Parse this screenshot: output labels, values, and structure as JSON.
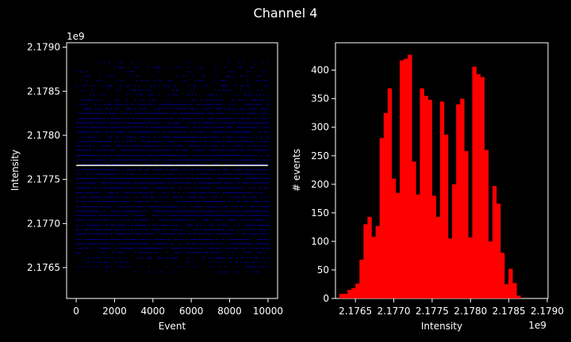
{
  "figure": {
    "title": "Channel 4",
    "background": "#000000",
    "foreground": "#ffffff"
  },
  "chart_data": [
    {
      "type": "scatter",
      "title": "",
      "xlabel": "Event",
      "ylabel": "Intensity",
      "y_offset_label": "1e9",
      "xlim": [
        -500,
        10500
      ],
      "ylim": [
        2176150000.0,
        2179050000.0
      ],
      "x_ticks": [
        0,
        2000,
        4000,
        6000,
        8000,
        10000
      ],
      "x_tick_labels": [
        "0",
        "2000",
        "4000",
        "6000",
        "8000",
        "10000"
      ],
      "y_ticks": [
        2176500000.0,
        2177000000.0,
        2177500000.0,
        2178000000.0,
        2178500000.0,
        2179000000.0
      ],
      "y_tick_labels": [
        "2.1765",
        "2.1770",
        "2.1775",
        "2.1780",
        "2.1785",
        "2.1790"
      ],
      "point_color": "#0000ff",
      "point_x_range": [
        0,
        10000
      ],
      "point_levels": [
        2176450000.0,
        2176510000.0,
        2176560000.0,
        2176610000.0,
        2176670000.0,
        2176720000.0,
        2176770000.0,
        2176820000.0,
        2176880000.0,
        2176930000.0,
        2176980000.0,
        2177040000.0,
        2177090000.0,
        2177140000.0,
        2177190000.0,
        2177250000.0,
        2177300000.0,
        2177350000.0,
        2177400000.0,
        2177460000.0,
        2177510000.0,
        2177560000.0,
        2177610000.0,
        2177670000.0,
        2177720000.0,
        2177770000.0,
        2177830000.0,
        2177880000.0,
        2177930000.0,
        2177980000.0,
        2178040000.0,
        2178090000.0,
        2178140000.0,
        2178190000.0,
        2178250000.0,
        2178300000.0,
        2178350000.0,
        2178400000.0,
        2178460000.0,
        2178510000.0,
        2178560000.0,
        2178620000.0,
        2178670000.0,
        2178720000.0,
        2178770000.0,
        2178830000.0
      ],
      "level_density": [
        0.2,
        0.25,
        0.3,
        0.45,
        0.55,
        0.65,
        0.7,
        0.75,
        0.75,
        0.7,
        0.65,
        0.7,
        0.8,
        0.85,
        0.8,
        0.75,
        0.7,
        0.65,
        0.75,
        0.8,
        0.8,
        0.75,
        0.7,
        0.75,
        0.8,
        0.85,
        0.8,
        0.7,
        0.65,
        0.7,
        0.8,
        0.85,
        0.8,
        0.75,
        0.7,
        0.6,
        0.55,
        0.5,
        0.4,
        0.35,
        0.3,
        0.3,
        0.25,
        0.2,
        0.2,
        0.15
      ],
      "mean_line": {
        "value": 2177660000.0,
        "x_range": [
          0,
          10000
        ],
        "color": "#ffffff"
      }
    },
    {
      "type": "bar",
      "title": "",
      "xlabel": "Intensity",
      "ylabel": "# events",
      "x_offset_label": "1e9",
      "xlim": [
        2176240000.0,
        2179010000.0
      ],
      "ylim": [
        0,
        448
      ],
      "x_ticks": [
        2176500000.0,
        2177000000.0,
        2177500000.0,
        2178000000.0,
        2178500000.0,
        2179000000.0
      ],
      "x_tick_labels": [
        "2.1765",
        "2.1770",
        "2.1775",
        "2.1780",
        "2.1785",
        "2.1790"
      ],
      "y_ticks": [
        0,
        50,
        100,
        150,
        200,
        250,
        300,
        350,
        400
      ],
      "y_tick_labels": [
        "0",
        "50",
        "100",
        "150",
        "200",
        "250",
        "300",
        "350",
        "400"
      ],
      "bar_color": "#ff0000",
      "bin_start": 2176290000.0,
      "bin_width": 52500.0,
      "values": [
        8,
        8,
        15,
        18,
        26,
        68,
        130,
        143,
        108,
        127,
        281,
        325,
        368,
        210,
        185,
        417,
        420,
        427,
        240,
        182,
        368,
        355,
        348,
        180,
        143,
        345,
        287,
        105,
        200,
        340,
        350,
        258,
        107,
        406,
        393,
        388,
        260,
        100,
        197,
        166,
        80,
        25,
        52,
        27,
        5
      ]
    }
  ]
}
